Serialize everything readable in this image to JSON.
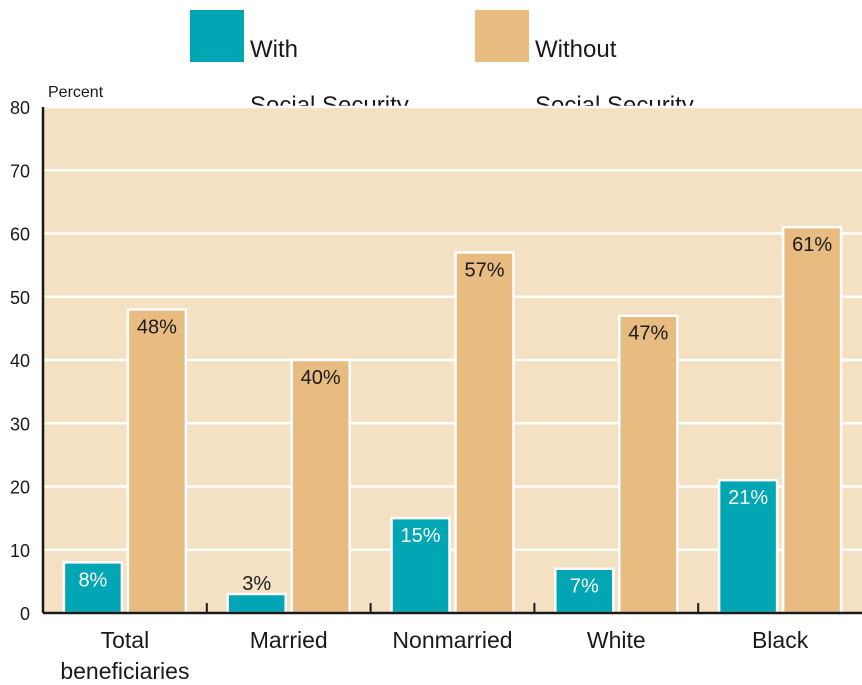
{
  "legend": [
    {
      "line1": "With",
      "line2": "Social Security",
      "color": "#00a6b4"
    },
    {
      "line1": "Without",
      "line2": "Social Security",
      "color": "#e8bb80"
    }
  ],
  "colors": {
    "plot_background": "#f4e0c3",
    "grid": "#ffffff",
    "axis": "#1a1a1a",
    "bar_edge": "#ffffff",
    "label_on_with_bar": "#ffffff",
    "label_on_without_bar": "#1a1a1a"
  },
  "chart_data": {
    "type": "bar",
    "ylabel": "Percent",
    "ylim": [
      0,
      80
    ],
    "yticks": [
      0,
      10,
      20,
      30,
      40,
      50,
      60,
      70,
      80
    ],
    "grid": true,
    "legend_position": "top",
    "categories": [
      [
        "Total",
        "beneficiaries"
      ],
      [
        "Married"
      ],
      [
        "Nonmarried"
      ],
      [
        "White"
      ],
      [
        "Black"
      ]
    ],
    "series": [
      {
        "name": "With Social Security",
        "values": [
          8,
          3,
          15,
          7,
          21
        ],
        "labels": [
          "8%",
          "3%",
          "15%",
          "7%",
          "21%"
        ]
      },
      {
        "name": "Without Social Security",
        "values": [
          48,
          40,
          57,
          47,
          61
        ],
        "labels": [
          "48%",
          "40%",
          "57%",
          "47%",
          "61%"
        ]
      }
    ]
  }
}
